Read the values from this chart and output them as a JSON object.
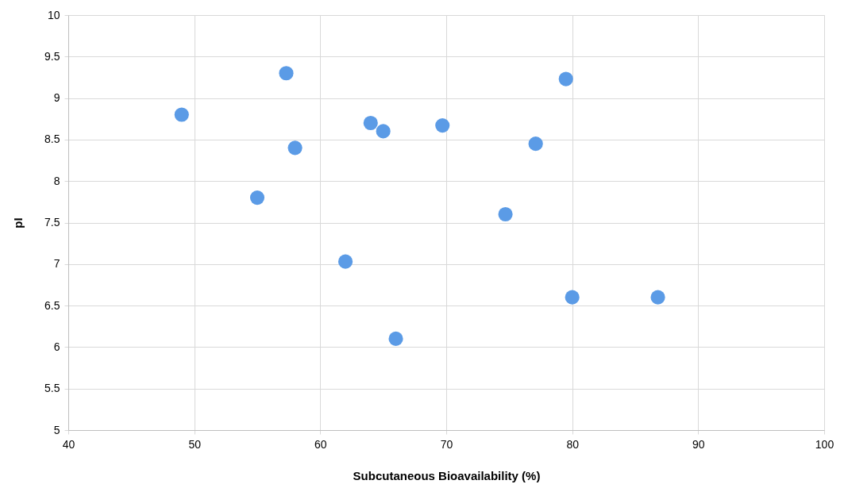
{
  "chart_data": {
    "type": "scatter",
    "xlabel": "Subcutaneous Bioavailability (%)",
    "ylabel": "pI",
    "x": [
      49,
      57.3,
      58,
      55,
      62,
      64,
      65,
      66,
      69.7,
      74.7,
      77.1,
      79.5,
      80,
      86.8
    ],
    "series": [
      {
        "color": "#5b9be6",
        "values": [
          8.8,
          9.3,
          8.4,
          7.8,
          7.03,
          8.7,
          8.6,
          6.1,
          8.67,
          7.6,
          8.45,
          9.23,
          6.6,
          6.6
        ]
      }
    ],
    "xlim": [
      40,
      100
    ],
    "xticks": [
      40,
      50,
      60,
      70,
      80,
      90,
      100
    ],
    "ylim": [
      5,
      10
    ],
    "yticks": [
      5,
      5.5,
      6,
      6.5,
      7,
      7.5,
      8,
      8.5,
      9,
      9.5,
      10
    ],
    "grid": true,
    "marker": "circle"
  }
}
